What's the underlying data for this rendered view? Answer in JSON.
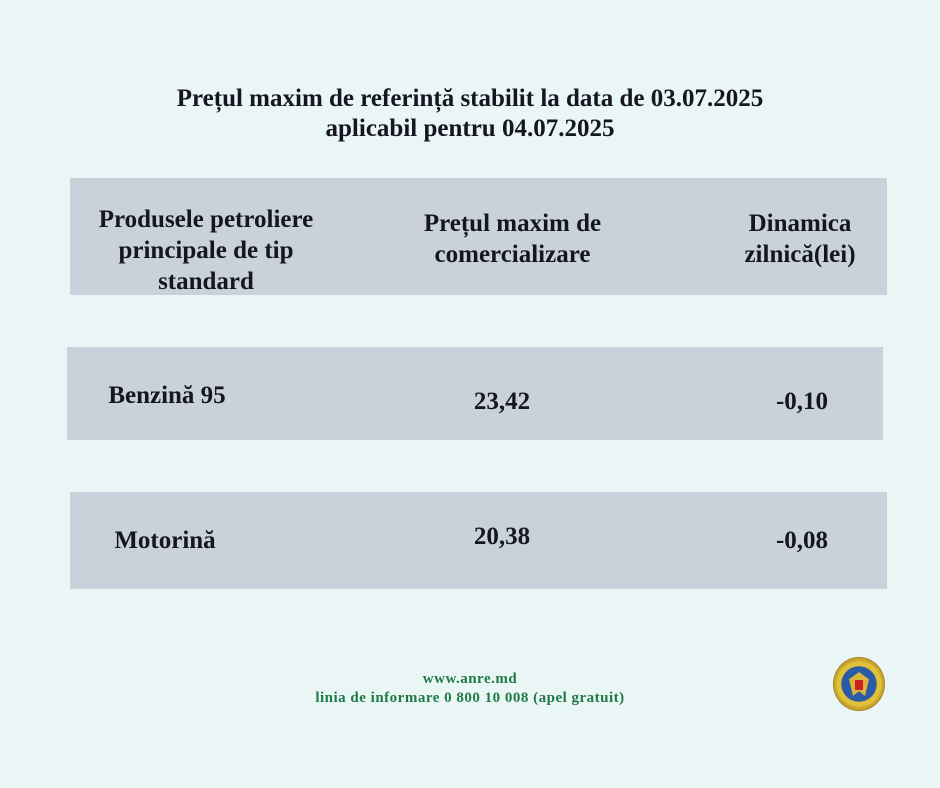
{
  "title": {
    "line1": "Prețul maxim de referință stabilit la data de 03.07.2025",
    "line2": "aplicabil pentru 04.07.2025"
  },
  "table": {
    "headers": [
      [
        "Produsele petroliere",
        "principale de tip",
        "standard"
      ],
      [
        "Prețul maxim de",
        "comercializare"
      ],
      [
        "Dinamica",
        "zilnică(lei)"
      ]
    ],
    "rows": [
      {
        "product": "Benzină 95",
        "price": "23,42",
        "change": "-0,10"
      },
      {
        "product": "Motorină",
        "price": "20,38",
        "change": "-0,08"
      }
    ]
  },
  "footer": {
    "website": "www.anre.md",
    "hotline": "linia de informare 0 800 10 008 (apel gratuit)"
  },
  "logo": {
    "icon": "moldova-coat-of-arms-seal-icon"
  },
  "colors": {
    "background": "#e9f6f5",
    "band": "#c9d2da",
    "footer_text": "#1f7a47",
    "text": "#161622"
  }
}
